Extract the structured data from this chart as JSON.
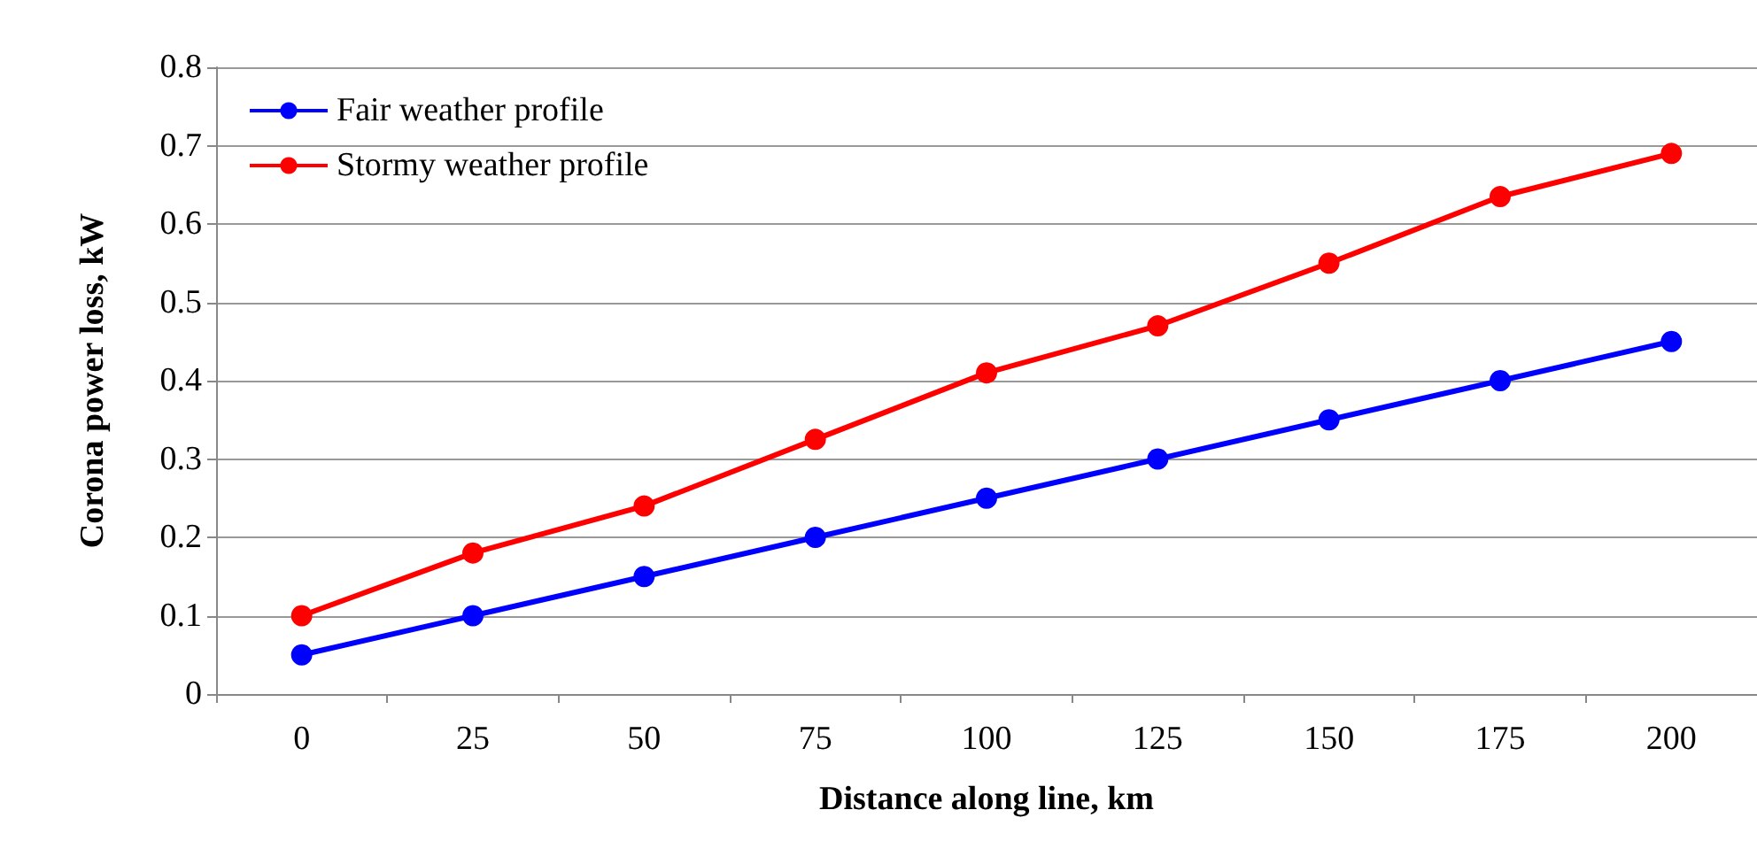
{
  "chart_data": {
    "type": "line",
    "xlabel": "Distance along line, km",
    "ylabel": "Corona power loss, kW",
    "categories": [
      "0",
      "25",
      "50",
      "75",
      "100",
      "125",
      "150",
      "175",
      "200"
    ],
    "series": [
      {
        "name": "Fair weather profile",
        "color": "#0000ff",
        "values": [
          0.05,
          0.1,
          0.15,
          0.2,
          0.25,
          0.3,
          0.35,
          0.4,
          0.45
        ]
      },
      {
        "name": "Stormy weather profile",
        "color": "#ff0000",
        "values": [
          0.1,
          0.18,
          0.24,
          0.325,
          0.41,
          0.47,
          0.55,
          0.635,
          0.69
        ]
      }
    ],
    "ylim": [
      0,
      0.8
    ],
    "yticks": [
      0,
      0.1,
      0.2,
      0.3,
      0.4,
      0.5,
      0.6,
      0.7,
      0.8
    ],
    "grid": "y",
    "legend": "top left",
    "marker": "circle",
    "line_style": "solid"
  }
}
